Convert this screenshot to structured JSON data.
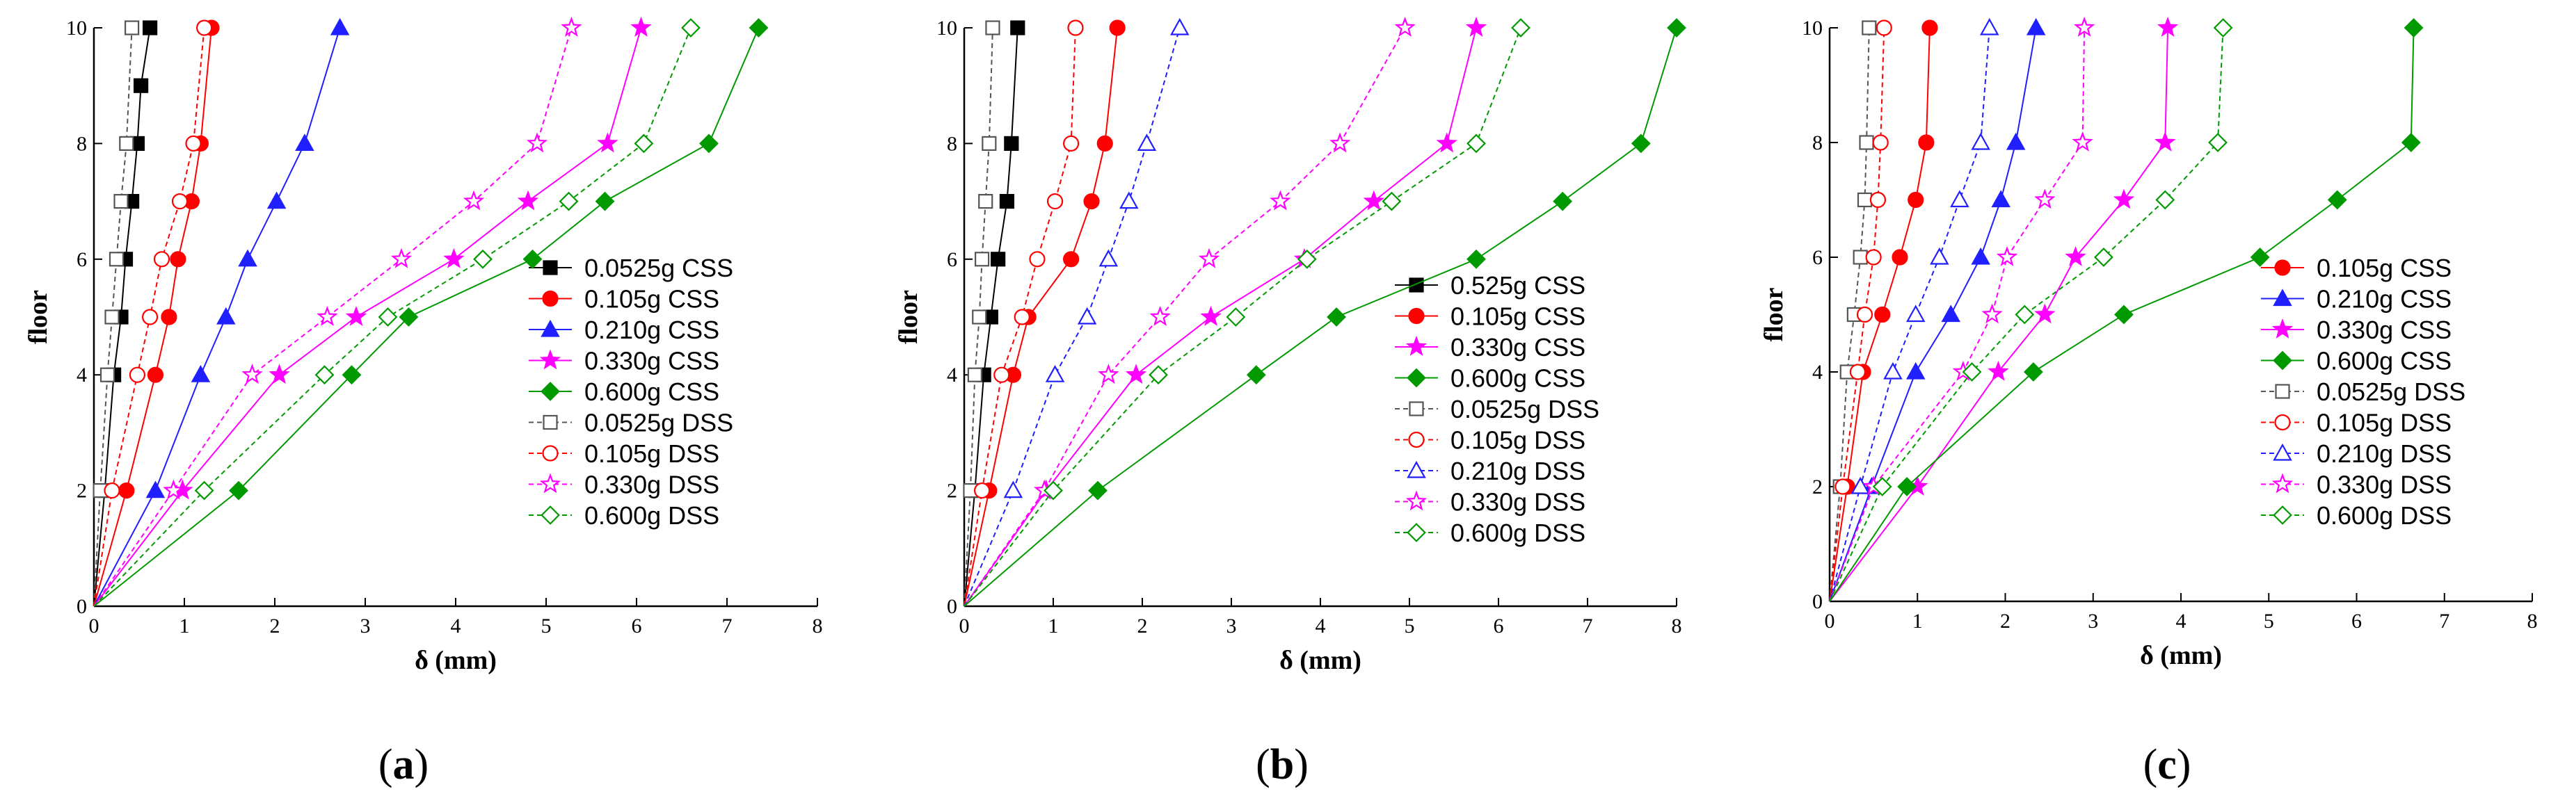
{
  "colors": {
    "black": "#000000",
    "red": "#ff0000",
    "blue": "#1f1fff",
    "magenta": "#ff00ff",
    "green": "#009900",
    "gray": "#555555"
  },
  "chart_data": [
    {
      "type": "line",
      "panel_label_text": "a",
      "xlabel": "δ (mm)",
      "ylabel": "floor",
      "xlim": [
        0,
        8
      ],
      "ylim": [
        0,
        10
      ],
      "xticks": [
        0,
        1,
        2,
        3,
        4,
        5,
        6,
        7,
        8
      ],
      "yticks": [
        0,
        2,
        4,
        6,
        8,
        10
      ],
      "legend_position": "right",
      "series": [
        {
          "name": "0.0525g CSS",
          "color": "black",
          "marker": "square",
          "filled": true,
          "dashed": false,
          "x": [
            0,
            0.12,
            0.22,
            0.3,
            0.35,
            0.42,
            0.48,
            0.52,
            0.62
          ],
          "y": [
            0,
            2,
            4,
            5,
            6,
            7,
            8,
            9,
            10
          ]
        },
        {
          "name": "0.105g CSS",
          "color": "red",
          "marker": "circle",
          "filled": true,
          "dashed": false,
          "x": [
            0,
            0.36,
            0.68,
            0.83,
            0.93,
            1.08,
            1.18,
            1.3
          ],
          "y": [
            0,
            2,
            4,
            5,
            6,
            7,
            8,
            10
          ]
        },
        {
          "name": "0.210g CSS",
          "color": "blue",
          "marker": "triangle",
          "filled": true,
          "dashed": false,
          "x": [
            0,
            0.68,
            1.18,
            1.46,
            1.7,
            2.02,
            2.33,
            2.72
          ],
          "y": [
            0,
            2,
            4,
            5,
            6,
            7,
            8,
            10
          ]
        },
        {
          "name": "0.330g CSS",
          "color": "magenta",
          "marker": "star",
          "filled": true,
          "dashed": false,
          "x": [
            0,
            0.98,
            2.05,
            2.9,
            3.98,
            4.8,
            5.68,
            6.05
          ],
          "y": [
            0,
            2,
            4,
            5,
            6,
            7,
            8,
            10
          ]
        },
        {
          "name": "0.600g CSS",
          "color": "green",
          "marker": "diamond",
          "filled": true,
          "dashed": false,
          "x": [
            0,
            1.6,
            2.85,
            3.48,
            4.85,
            5.65,
            6.8,
            7.35
          ],
          "y": [
            0,
            2,
            4,
            5,
            6,
            7,
            8,
            10
          ]
        },
        {
          "name": "0.0525g DSS",
          "color": "gray",
          "marker": "square",
          "filled": false,
          "dashed": true,
          "x": [
            0,
            0.07,
            0.15,
            0.2,
            0.25,
            0.3,
            0.36,
            0.42
          ],
          "y": [
            0,
            2,
            4,
            5,
            6,
            7,
            8,
            10
          ]
        },
        {
          "name": "0.105g DSS",
          "color": "red",
          "marker": "circle",
          "filled": false,
          "dashed": true,
          "x": [
            0,
            0.2,
            0.48,
            0.62,
            0.75,
            0.95,
            1.1,
            1.22
          ],
          "y": [
            0,
            2,
            4,
            5,
            6,
            7,
            8,
            10
          ]
        },
        {
          "name": "0.330g DSS",
          "color": "magenta",
          "marker": "star",
          "filled": false,
          "dashed": true,
          "x": [
            0,
            0.88,
            1.75,
            2.58,
            3.4,
            4.2,
            4.9,
            5.28
          ],
          "y": [
            0,
            2,
            4,
            5,
            6,
            7,
            8,
            10
          ]
        },
        {
          "name": "0.600g DSS",
          "color": "green",
          "marker": "diamond",
          "filled": false,
          "dashed": true,
          "x": [
            0,
            1.22,
            2.55,
            3.25,
            4.3,
            5.25,
            6.08,
            6.6
          ],
          "y": [
            0,
            2,
            4,
            5,
            6,
            7,
            8,
            10
          ]
        }
      ]
    },
    {
      "type": "line",
      "panel_label_text": "b",
      "xlabel": "δ (mm)",
      "ylabel": "floor",
      "xlim": [
        0,
        8
      ],
      "ylim": [
        0,
        10
      ],
      "xticks": [
        0,
        1,
        2,
        3,
        4,
        5,
        6,
        7,
        8
      ],
      "yticks": [
        0,
        2,
        4,
        6,
        8,
        10
      ],
      "legend_position": "right",
      "series": [
        {
          "name": "0.525g CSS",
          "color": "black",
          "marker": "square",
          "filled": true,
          "dashed": false,
          "x": [
            0,
            0.12,
            0.22,
            0.3,
            0.38,
            0.48,
            0.53,
            0.6
          ],
          "y": [
            0,
            2,
            4,
            5,
            6,
            7,
            8,
            10
          ]
        },
        {
          "name": "0.105g CSS",
          "color": "red",
          "marker": "circle",
          "filled": true,
          "dashed": false,
          "x": [
            0,
            0.28,
            0.55,
            0.72,
            1.2,
            1.43,
            1.58,
            1.72
          ],
          "y": [
            0,
            2,
            4,
            5,
            6,
            7,
            8,
            10
          ]
        },
        {
          "name": "0.330g CSS",
          "color": "magenta",
          "marker": "star",
          "filled": true,
          "dashed": false,
          "x": [
            0,
            0.92,
            1.93,
            2.77,
            3.82,
            4.6,
            5.42,
            5.75
          ],
          "y": [
            0,
            2,
            4,
            5,
            6,
            7,
            8,
            10
          ]
        },
        {
          "name": "0.600g CSS",
          "color": "green",
          "marker": "diamond",
          "filled": true,
          "dashed": false,
          "x": [
            0,
            1.5,
            3.28,
            4.18,
            5.75,
            6.72,
            7.6,
            8.0
          ],
          "y": [
            0,
            2,
            4,
            5,
            6,
            7,
            8,
            10
          ]
        },
        {
          "name": "0.0525g DSS",
          "color": "gray",
          "marker": "square",
          "filled": false,
          "dashed": true,
          "x": [
            0,
            0.07,
            0.12,
            0.17,
            0.2,
            0.24,
            0.28,
            0.32
          ],
          "y": [
            0,
            2,
            4,
            5,
            6,
            7,
            8,
            10
          ]
        },
        {
          "name": "0.105g DSS",
          "color": "red",
          "marker": "circle",
          "filled": false,
          "dashed": true,
          "x": [
            0,
            0.2,
            0.42,
            0.65,
            0.82,
            1.02,
            1.2,
            1.25
          ],
          "y": [
            0,
            2,
            4,
            5,
            6,
            7,
            8,
            10
          ]
        },
        {
          "name": "0.210g DSS",
          "color": "blue",
          "marker": "triangle",
          "filled": false,
          "dashed": true,
          "x": [
            0,
            0.55,
            1.02,
            1.38,
            1.62,
            1.85,
            2.05,
            2.42
          ],
          "y": [
            0,
            2,
            4,
            5,
            6,
            7,
            8,
            10
          ]
        },
        {
          "name": "0.330g DSS",
          "color": "magenta",
          "marker": "star",
          "filled": false,
          "dashed": true,
          "x": [
            0,
            0.9,
            1.62,
            2.2,
            2.75,
            3.55,
            4.22,
            4.95
          ],
          "y": [
            0,
            2,
            4,
            5,
            6,
            7,
            8,
            10
          ]
        },
        {
          "name": "0.600g DSS",
          "color": "green",
          "marker": "diamond",
          "filled": false,
          "dashed": true,
          "x": [
            0,
            1.0,
            2.18,
            3.05,
            3.85,
            4.8,
            5.75,
            6.25
          ],
          "y": [
            0,
            2,
            4,
            5,
            6,
            7,
            8,
            10
          ]
        }
      ]
    },
    {
      "type": "line",
      "panel_label_text": "c",
      "xlabel": "δ (mm)",
      "ylabel": "floor",
      "xlim": [
        0,
        8
      ],
      "ylim": [
        0,
        10
      ],
      "xticks": [
        0,
        1,
        2,
        3,
        4,
        5,
        6,
        7,
        8
      ],
      "yticks": [
        0,
        2,
        4,
        6,
        8,
        10
      ],
      "legend_position": "right",
      "series": [
        {
          "name": "0.105g CSS",
          "color": "red",
          "marker": "circle",
          "filled": true,
          "dashed": false,
          "x": [
            0,
            0.2,
            0.38,
            0.6,
            0.8,
            0.98,
            1.1,
            1.14
          ],
          "y": [
            0,
            2,
            4,
            5,
            6,
            7,
            8,
            10
          ]
        },
        {
          "name": "0.210g CSS",
          "color": "blue",
          "marker": "triangle",
          "filled": true,
          "dashed": false,
          "x": [
            0,
            0.48,
            0.98,
            1.38,
            1.72,
            1.95,
            2.12,
            2.35
          ],
          "y": [
            0,
            2,
            4,
            5,
            6,
            7,
            8,
            10
          ]
        },
        {
          "name": "0.330g CSS",
          "color": "magenta",
          "marker": "star",
          "filled": true,
          "dashed": false,
          "x": [
            0,
            1.0,
            1.92,
            2.45,
            2.8,
            3.35,
            3.82,
            3.85
          ],
          "y": [
            0,
            2,
            4,
            5,
            6,
            7,
            8,
            10
          ]
        },
        {
          "name": "0.600g CSS",
          "color": "green",
          "marker": "diamond",
          "filled": true,
          "dashed": false,
          "x": [
            0,
            0.88,
            2.32,
            3.35,
            4.9,
            5.78,
            6.62,
            6.65
          ],
          "y": [
            0,
            2,
            4,
            5,
            6,
            7,
            8,
            10
          ]
        },
        {
          "name": "0.0525g DSS",
          "color": "gray",
          "marker": "square",
          "filled": false,
          "dashed": true,
          "x": [
            0,
            0.12,
            0.2,
            0.28,
            0.35,
            0.4,
            0.42,
            0.45
          ],
          "y": [
            0,
            2,
            4,
            5,
            6,
            7,
            8,
            10
          ]
        },
        {
          "name": "0.105g DSS",
          "color": "red",
          "marker": "circle",
          "filled": false,
          "dashed": true,
          "x": [
            0,
            0.15,
            0.32,
            0.4,
            0.5,
            0.55,
            0.58,
            0.62
          ],
          "y": [
            0,
            2,
            4,
            5,
            6,
            7,
            8,
            10
          ]
        },
        {
          "name": "0.210g DSS",
          "color": "blue",
          "marker": "triangle",
          "filled": false,
          "dashed": true,
          "x": [
            0,
            0.35,
            0.72,
            0.98,
            1.25,
            1.48,
            1.72,
            1.82
          ],
          "y": [
            0,
            2,
            4,
            5,
            6,
            7,
            8,
            10
          ]
        },
        {
          "name": "0.330g DSS",
          "color": "magenta",
          "marker": "star",
          "filled": false,
          "dashed": true,
          "x": [
            0,
            0.5,
            1.52,
            1.85,
            2.02,
            2.45,
            2.88,
            2.9
          ],
          "y": [
            0,
            2,
            4,
            5,
            6,
            7,
            8,
            10
          ]
        },
        {
          "name": "0.600g DSS",
          "color": "green",
          "marker": "diamond",
          "filled": false,
          "dashed": true,
          "x": [
            0,
            0.6,
            1.62,
            2.22,
            3.12,
            3.82,
            4.42,
            4.48
          ],
          "y": [
            0,
            2,
            4,
            5,
            6,
            7,
            8,
            10
          ]
        }
      ]
    }
  ]
}
